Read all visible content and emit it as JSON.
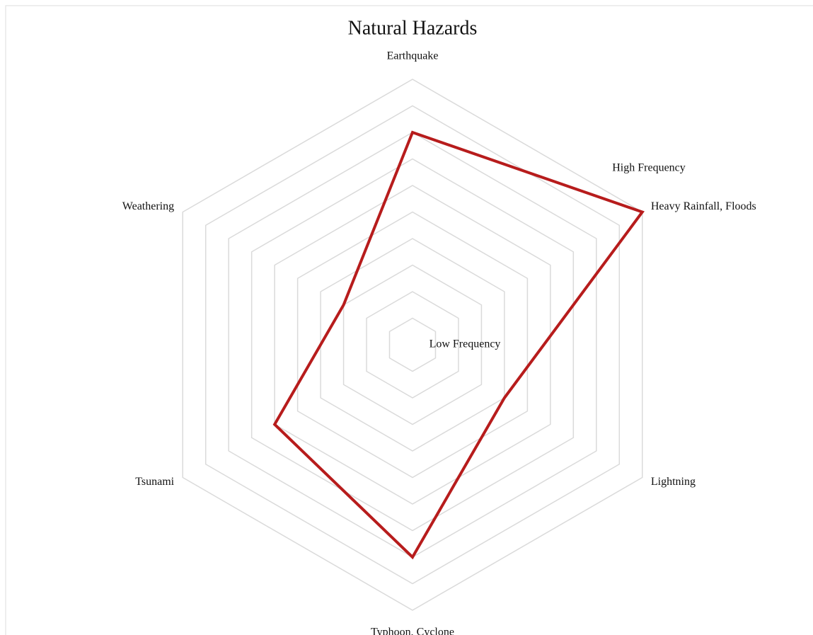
{
  "chart_data": {
    "type": "radar",
    "title": "Natural Hazards",
    "categories": [
      "Earthquake",
      "Heavy Rainfall, Floods",
      "Lightning",
      "Typhoon, Cyclone",
      "Tsunami",
      "Weathering"
    ],
    "series": [
      {
        "name": "Natural Hazards",
        "color": "#b71c1c",
        "values": [
          8,
          10,
          4,
          8,
          6,
          3
        ]
      }
    ],
    "ylim": [
      0,
      10
    ],
    "yticks": [
      1,
      2,
      3,
      4,
      5,
      6,
      7,
      8,
      9,
      10
    ],
    "grid": true,
    "annotations": [
      "High Frequency",
      "Low Frequency"
    ]
  }
}
